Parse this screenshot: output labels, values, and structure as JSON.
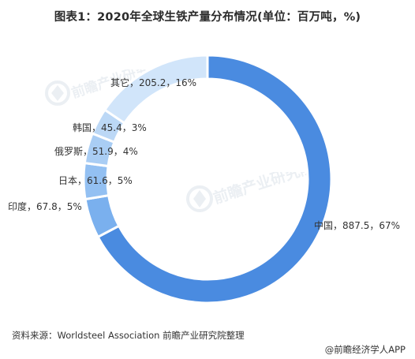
{
  "chart_data": {
    "type": "pie",
    "variant": "donut",
    "title": "图表1：2020年全球生铁产量分布情况(单位：百万吨，%)",
    "categories": [
      "中国",
      "印度",
      "日本",
      "俄罗斯",
      "韩国",
      "其它"
    ],
    "values": [
      887.5,
      67.8,
      61.6,
      51.9,
      45.4,
      205.2
    ],
    "percentages": [
      67,
      5,
      5,
      4,
      3,
      16
    ],
    "colors": [
      "#4a8be0",
      "#7ab0ee",
      "#93c0f2",
      "#a9cdf4",
      "#bcd8f6",
      "#d1e5fa"
    ],
    "data_labels": [
      "中国，887.5，67%",
      "印度，67.8，5%",
      "日本，61.6，5%",
      "俄罗斯，51.9，4%",
      "韩国，45.4，3%",
      "其它，205.2，16%"
    ]
  },
  "watermark": "前瞻产业研究院",
  "footer": {
    "source": "资料来源：Worldsteel Association 前瞻产业研究院整理",
    "credit": "@前瞻经济学人APP"
  }
}
